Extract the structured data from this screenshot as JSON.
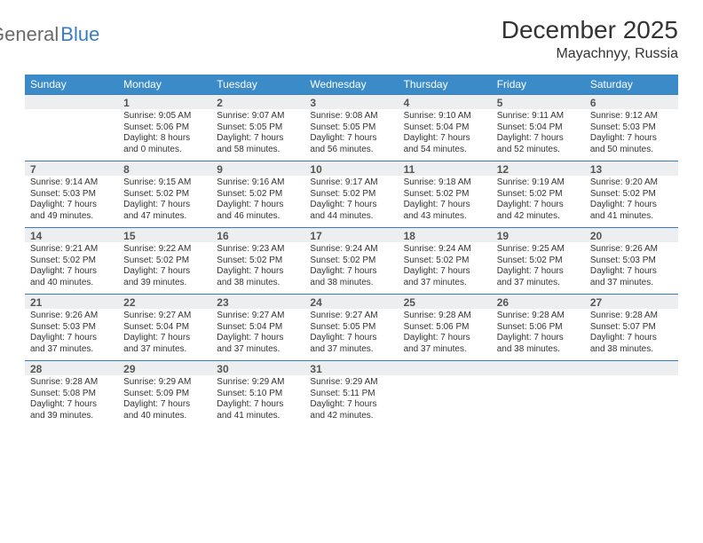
{
  "logo": {
    "part1": "General",
    "part2": "Blue"
  },
  "title": "December 2025",
  "location": "Mayachnyy, Russia",
  "colors": {
    "header_bg": "#3b8bc9",
    "header_text": "#ffffff",
    "daynum_bg": "#eceeef",
    "week_border": "#3b7bbf",
    "logo_gray": "#6a6a6a",
    "logo_blue": "#3b7bbf",
    "body_text": "#333333"
  },
  "dow": [
    "Sunday",
    "Monday",
    "Tuesday",
    "Wednesday",
    "Thursday",
    "Friday",
    "Saturday"
  ],
  "weeks": [
    [
      {
        "n": "",
        "sr": "",
        "ss": "",
        "dl": ""
      },
      {
        "n": "1",
        "sr": "9:05 AM",
        "ss": "5:06 PM",
        "dl": "8 hours and 0 minutes."
      },
      {
        "n": "2",
        "sr": "9:07 AM",
        "ss": "5:05 PM",
        "dl": "7 hours and 58 minutes."
      },
      {
        "n": "3",
        "sr": "9:08 AM",
        "ss": "5:05 PM",
        "dl": "7 hours and 56 minutes."
      },
      {
        "n": "4",
        "sr": "9:10 AM",
        "ss": "5:04 PM",
        "dl": "7 hours and 54 minutes."
      },
      {
        "n": "5",
        "sr": "9:11 AM",
        "ss": "5:04 PM",
        "dl": "7 hours and 52 minutes."
      },
      {
        "n": "6",
        "sr": "9:12 AM",
        "ss": "5:03 PM",
        "dl": "7 hours and 50 minutes."
      }
    ],
    [
      {
        "n": "7",
        "sr": "9:14 AM",
        "ss": "5:03 PM",
        "dl": "7 hours and 49 minutes."
      },
      {
        "n": "8",
        "sr": "9:15 AM",
        "ss": "5:02 PM",
        "dl": "7 hours and 47 minutes."
      },
      {
        "n": "9",
        "sr": "9:16 AM",
        "ss": "5:02 PM",
        "dl": "7 hours and 46 minutes."
      },
      {
        "n": "10",
        "sr": "9:17 AM",
        "ss": "5:02 PM",
        "dl": "7 hours and 44 minutes."
      },
      {
        "n": "11",
        "sr": "9:18 AM",
        "ss": "5:02 PM",
        "dl": "7 hours and 43 minutes."
      },
      {
        "n": "12",
        "sr": "9:19 AM",
        "ss": "5:02 PM",
        "dl": "7 hours and 42 minutes."
      },
      {
        "n": "13",
        "sr": "9:20 AM",
        "ss": "5:02 PM",
        "dl": "7 hours and 41 minutes."
      }
    ],
    [
      {
        "n": "14",
        "sr": "9:21 AM",
        "ss": "5:02 PM",
        "dl": "7 hours and 40 minutes."
      },
      {
        "n": "15",
        "sr": "9:22 AM",
        "ss": "5:02 PM",
        "dl": "7 hours and 39 minutes."
      },
      {
        "n": "16",
        "sr": "9:23 AM",
        "ss": "5:02 PM",
        "dl": "7 hours and 38 minutes."
      },
      {
        "n": "17",
        "sr": "9:24 AM",
        "ss": "5:02 PM",
        "dl": "7 hours and 38 minutes."
      },
      {
        "n": "18",
        "sr": "9:24 AM",
        "ss": "5:02 PM",
        "dl": "7 hours and 37 minutes."
      },
      {
        "n": "19",
        "sr": "9:25 AM",
        "ss": "5:02 PM",
        "dl": "7 hours and 37 minutes."
      },
      {
        "n": "20",
        "sr": "9:26 AM",
        "ss": "5:03 PM",
        "dl": "7 hours and 37 minutes."
      }
    ],
    [
      {
        "n": "21",
        "sr": "9:26 AM",
        "ss": "5:03 PM",
        "dl": "7 hours and 37 minutes."
      },
      {
        "n": "22",
        "sr": "9:27 AM",
        "ss": "5:04 PM",
        "dl": "7 hours and 37 minutes."
      },
      {
        "n": "23",
        "sr": "9:27 AM",
        "ss": "5:04 PM",
        "dl": "7 hours and 37 minutes."
      },
      {
        "n": "24",
        "sr": "9:27 AM",
        "ss": "5:05 PM",
        "dl": "7 hours and 37 minutes."
      },
      {
        "n": "25",
        "sr": "9:28 AM",
        "ss": "5:06 PM",
        "dl": "7 hours and 37 minutes."
      },
      {
        "n": "26",
        "sr": "9:28 AM",
        "ss": "5:06 PM",
        "dl": "7 hours and 38 minutes."
      },
      {
        "n": "27",
        "sr": "9:28 AM",
        "ss": "5:07 PM",
        "dl": "7 hours and 38 minutes."
      }
    ],
    [
      {
        "n": "28",
        "sr": "9:28 AM",
        "ss": "5:08 PM",
        "dl": "7 hours and 39 minutes."
      },
      {
        "n": "29",
        "sr": "9:29 AM",
        "ss": "5:09 PM",
        "dl": "7 hours and 40 minutes."
      },
      {
        "n": "30",
        "sr": "9:29 AM",
        "ss": "5:10 PM",
        "dl": "7 hours and 41 minutes."
      },
      {
        "n": "31",
        "sr": "9:29 AM",
        "ss": "5:11 PM",
        "dl": "7 hours and 42 minutes."
      },
      {
        "n": "",
        "sr": "",
        "ss": "",
        "dl": ""
      },
      {
        "n": "",
        "sr": "",
        "ss": "",
        "dl": ""
      },
      {
        "n": "",
        "sr": "",
        "ss": "",
        "dl": ""
      }
    ]
  ],
  "labels": {
    "sunrise": "Sunrise: ",
    "sunset": "Sunset: ",
    "daylight": "Daylight: "
  }
}
